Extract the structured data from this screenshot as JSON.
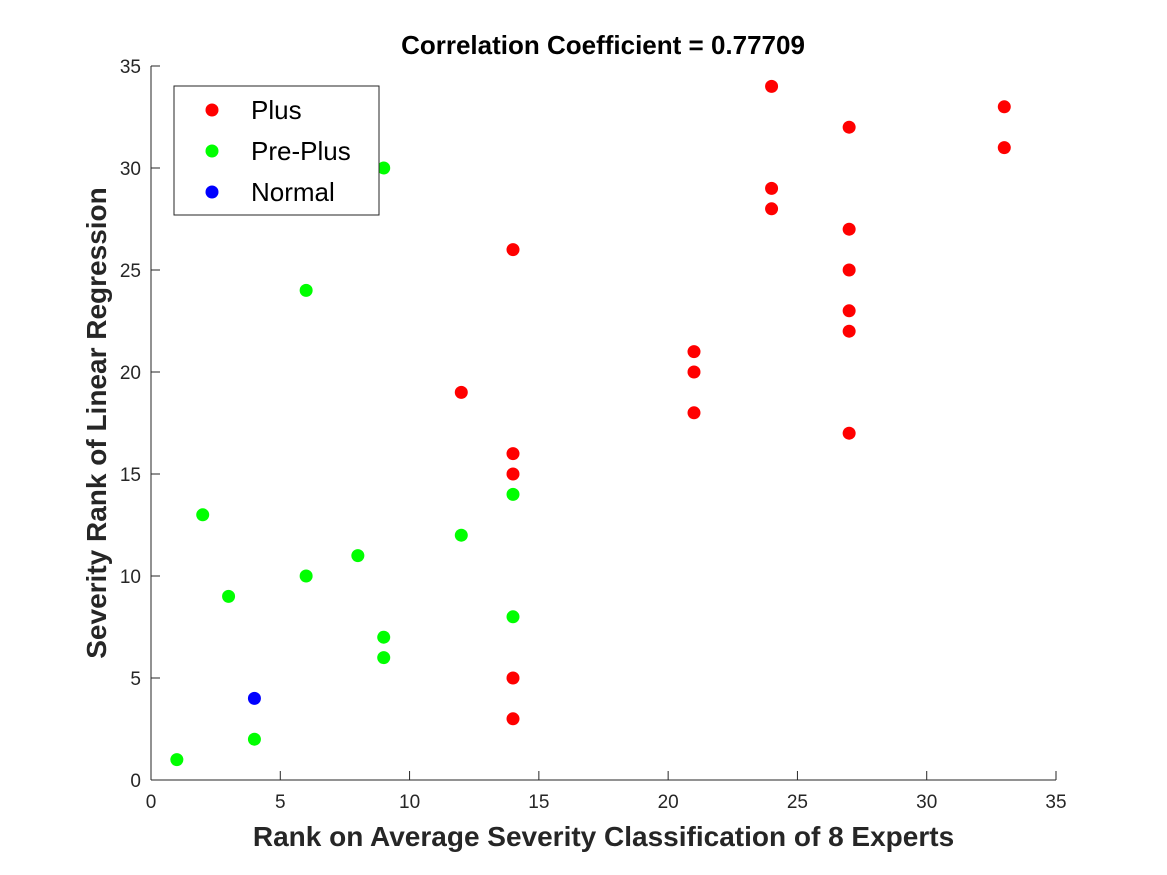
{
  "chart_data": {
    "type": "scatter",
    "title": "Correlation Coefficient = 0.77709",
    "xlabel": "Rank on Average Severity Classification of 8 Experts",
    "ylabel": "Severity Rank of Linear Regression",
    "xlim": [
      0,
      35
    ],
    "ylim": [
      0,
      35
    ],
    "xticks": [
      0,
      5,
      10,
      15,
      20,
      25,
      30,
      35
    ],
    "yticks": [
      0,
      5,
      10,
      15,
      20,
      25,
      30,
      35
    ],
    "grid": false,
    "legend_position": "top-left",
    "series": [
      {
        "name": "Plus",
        "color": "#ff0000",
        "points": [
          [
            24,
            34
          ],
          [
            33,
            33
          ],
          [
            27,
            32
          ],
          [
            33,
            31
          ],
          [
            24,
            29
          ],
          [
            24,
            28
          ],
          [
            27,
            27
          ],
          [
            14,
            26
          ],
          [
            27,
            25
          ],
          [
            27,
            23
          ],
          [
            27,
            22
          ],
          [
            21,
            21
          ],
          [
            21,
            20
          ],
          [
            12,
            19
          ],
          [
            21,
            18
          ],
          [
            27,
            17
          ],
          [
            14,
            16
          ],
          [
            14,
            15
          ],
          [
            14,
            5
          ],
          [
            14,
            3
          ]
        ]
      },
      {
        "name": "Pre-Plus",
        "color": "#00ff00",
        "points": [
          [
            9,
            30
          ],
          [
            6,
            24
          ],
          [
            14,
            14
          ],
          [
            2,
            13
          ],
          [
            12,
            12
          ],
          [
            8,
            11
          ],
          [
            6,
            10
          ],
          [
            3,
            9
          ],
          [
            14,
            8
          ],
          [
            9,
            7
          ],
          [
            9,
            6
          ],
          [
            4,
            2
          ],
          [
            1,
            1
          ]
        ]
      },
      {
        "name": "Normal",
        "color": "#0000ff",
        "points": [
          [
            4,
            4
          ]
        ]
      }
    ]
  }
}
